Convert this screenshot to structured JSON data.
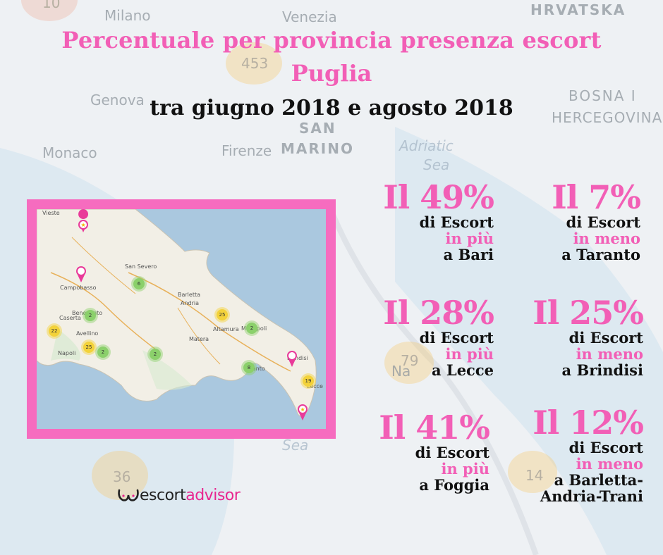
{
  "title": {
    "line1": "Percentuale per provincia presenza escort",
    "line2": "Puglia",
    "line3": "tra giugno 2018 e agosto 2018"
  },
  "background_labels": [
    "Milano",
    "Venezia",
    "HRVATSKA",
    "Genova",
    "BOSNA I",
    "HERCEGOVINA",
    "Monaco",
    "SAN",
    "Firenze",
    "MARINO",
    "Adriatic",
    "Sea",
    "Na",
    "Sea"
  ],
  "background_bubbles": [
    "10",
    "453",
    "36",
    "79",
    "14"
  ],
  "map": {
    "towns": [
      "Vieste",
      "Campobasso",
      "San Severo",
      "Barletta",
      "Andria",
      "Caserta",
      "Benevento",
      "Avellino",
      "Napoli",
      "Altamura",
      "Matera",
      "Brindisi",
      "Lecce",
      "Taranto",
      "Monopoli"
    ],
    "clusters": [
      "6",
      "2",
      "25",
      "2",
      "22",
      "25",
      "2",
      "2",
      "8",
      "19"
    ]
  },
  "stats": [
    {
      "big": "Il 49%",
      "l1": "di Escort",
      "l2": "in più",
      "l3": "a Bari"
    },
    {
      "big": "Il 7%",
      "l1": "di Escort",
      "l2": "in meno",
      "l3": "a Taranto"
    },
    {
      "big": "Il 28%",
      "l1": "di Escort",
      "l2": "in più",
      "l3": "a Lecce"
    },
    {
      "big": "Il 25%",
      "l1": "di Escort",
      "l2": "in meno",
      "l3": "a Brindisi"
    },
    {
      "big": "Il 41%",
      "l1": "di Escort",
      "l2": "in più",
      "l3": "a Foggia"
    },
    {
      "big": "Il 12%",
      "l1": "di Escort",
      "l2": "in meno",
      "l3": "a Barletta-",
      "l4": "Andria-Trani"
    }
  ],
  "logo": {
    "prefix": "escort",
    "accent": "advisor"
  },
  "colors": {
    "pink": "#f25fb6",
    "frame": "#f66cbf",
    "text": "#111111"
  }
}
